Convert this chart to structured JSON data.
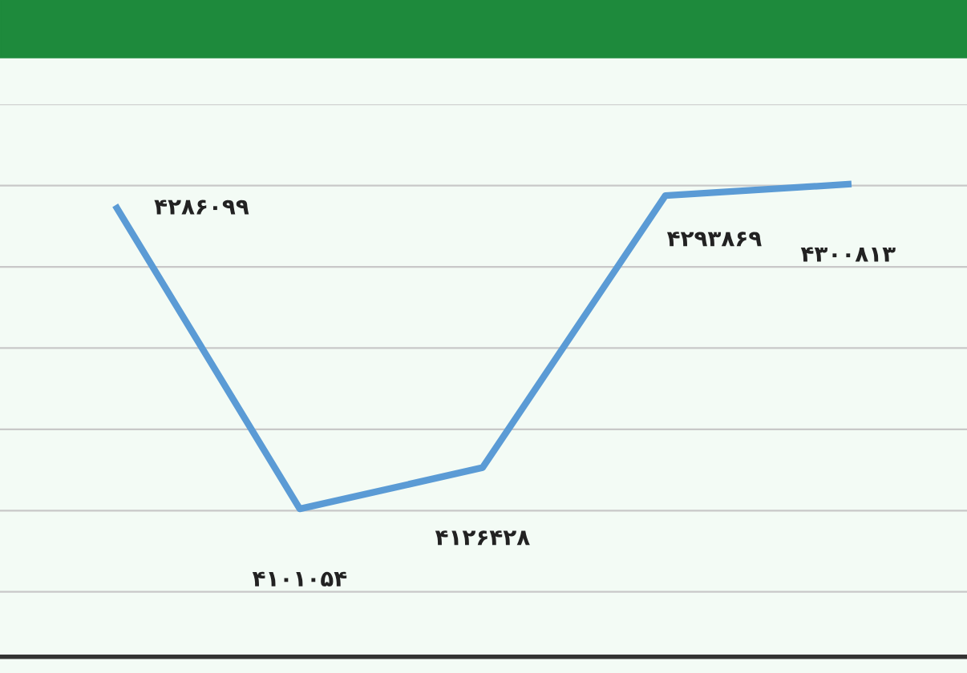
{
  "chart_data": {
    "type": "line",
    "categories": [
      null,
      null,
      null,
      null,
      null
    ],
    "series": [
      {
        "color": "#5b9bd5",
        "values": [
          4286099,
          4101054,
          4126428,
          4293869,
          4300813
        ],
        "value_labels": [
          "۴۲۸۶۰۹۹",
          "۴۱۰۱۰۵۴",
          "۴۱۲۶۴۲۸",
          "۴۲۹۳۸۶۹",
          "۴۳۰۰۸۱۳"
        ]
      }
    ],
    "ylim": [
      4010000,
      4350000
    ],
    "yticks": [
      {
        "value": 4050000,
        "label": null
      },
      {
        "value": 4100000,
        "label": null
      },
      {
        "value": 4150000,
        "label": null
      },
      {
        "value": 4200000,
        "label": null
      },
      {
        "value": 4250000,
        "label": null
      },
      {
        "value": 4300000,
        "label": null
      },
      {
        "value": 4350000,
        "label": null
      }
    ],
    "grid": "y",
    "marker": "none",
    "line_style": "solid",
    "legend": false
  }
}
